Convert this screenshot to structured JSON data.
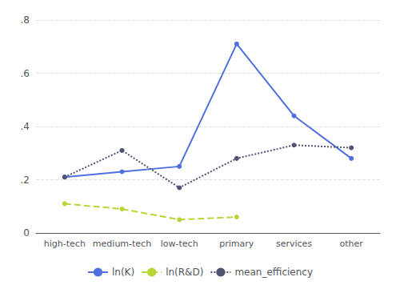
{
  "chart_data": {
    "type": "line",
    "categories": [
      "high-tech",
      "medium-tech",
      "low-tech",
      "primary",
      "services",
      "other"
    ],
    "series": [
      {
        "name": "ln(K)",
        "values": [
          0.21,
          0.23,
          0.25,
          0.71,
          0.44,
          0.28
        ],
        "line_style": "solid",
        "marker": "circle"
      },
      {
        "name": "ln(R&D)",
        "values": [
          0.11,
          0.09,
          0.05,
          0.06,
          null,
          null
        ],
        "line_style": "dashed",
        "marker": "circle"
      },
      {
        "name": "mean_efficiency",
        "values": [
          0.21,
          0.31,
          0.17,
          0.28,
          0.33,
          0.32
        ],
        "line_style": "dotted",
        "marker": "circle"
      }
    ],
    "ylim": [
      0,
      0.8
    ],
    "yticks": [
      0,
      {
        "value": 0.2,
        "label": ".2"
      },
      {
        "value": 0.4,
        "label": ".4"
      },
      {
        "value": 0.6,
        "label": ".6"
      },
      {
        "value": 0.8,
        "label": ".8"
      }
    ],
    "grid": true,
    "legend": "bottom"
  }
}
